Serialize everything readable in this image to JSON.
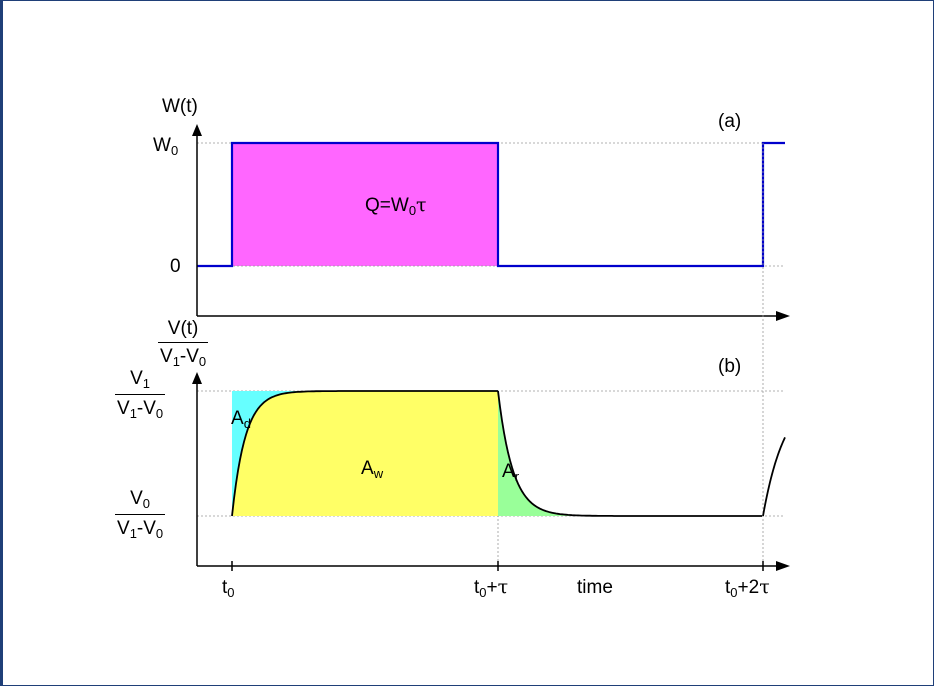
{
  "top_panel": {
    "tag": "(a)",
    "ylabel": "W(t)",
    "y_tick_high": "W",
    "y_tick_high_sub": "0",
    "y_tick_low": "0",
    "area_label_pre": "Q=W",
    "area_label_sub": "0",
    "area_label_tau": "τ"
  },
  "bottom_panel": {
    "tag": "(b)",
    "ylabel": {
      "num": "V(t)",
      "den_a": "V",
      "den_a_sub": "1",
      "den_mid": "-V",
      "den_b_sub": "0"
    },
    "y_tick_high": {
      "num": "V",
      "num_sub": "1",
      "den_a": "V",
      "den_a_sub": "1",
      "den_mid": "-V",
      "den_b_sub": "0"
    },
    "y_tick_low": {
      "num": "V",
      "num_sub": "0",
      "den_a": "V",
      "den_a_sub": "1",
      "den_mid": "-V",
      "den_b_sub": "0"
    },
    "area_d": {
      "main": "A",
      "sub": "d"
    },
    "area_w": {
      "main": "A",
      "sub": "w"
    },
    "area_r": {
      "main": "A",
      "sub": "r"
    }
  },
  "x_axis": {
    "tick_t0": {
      "main": "t",
      "sub": "0"
    },
    "tick_t0_tau": {
      "main": "t",
      "sub": "0",
      "suffix": "+",
      "tau": "τ"
    },
    "tick_t0_2tau": {
      "main": "t",
      "sub": "0",
      "suffix": "+2",
      "tau": "τ"
    },
    "title": "time"
  },
  "colors": {
    "frame": "#1f3f78",
    "pulse_line": "#0000cc",
    "pulse_fill": "#ff66ff",
    "area_d_fill": "#66ffff",
    "area_w_fill": "#ffff66",
    "area_r_fill": "#99ff99",
    "curve": "#000000"
  }
}
